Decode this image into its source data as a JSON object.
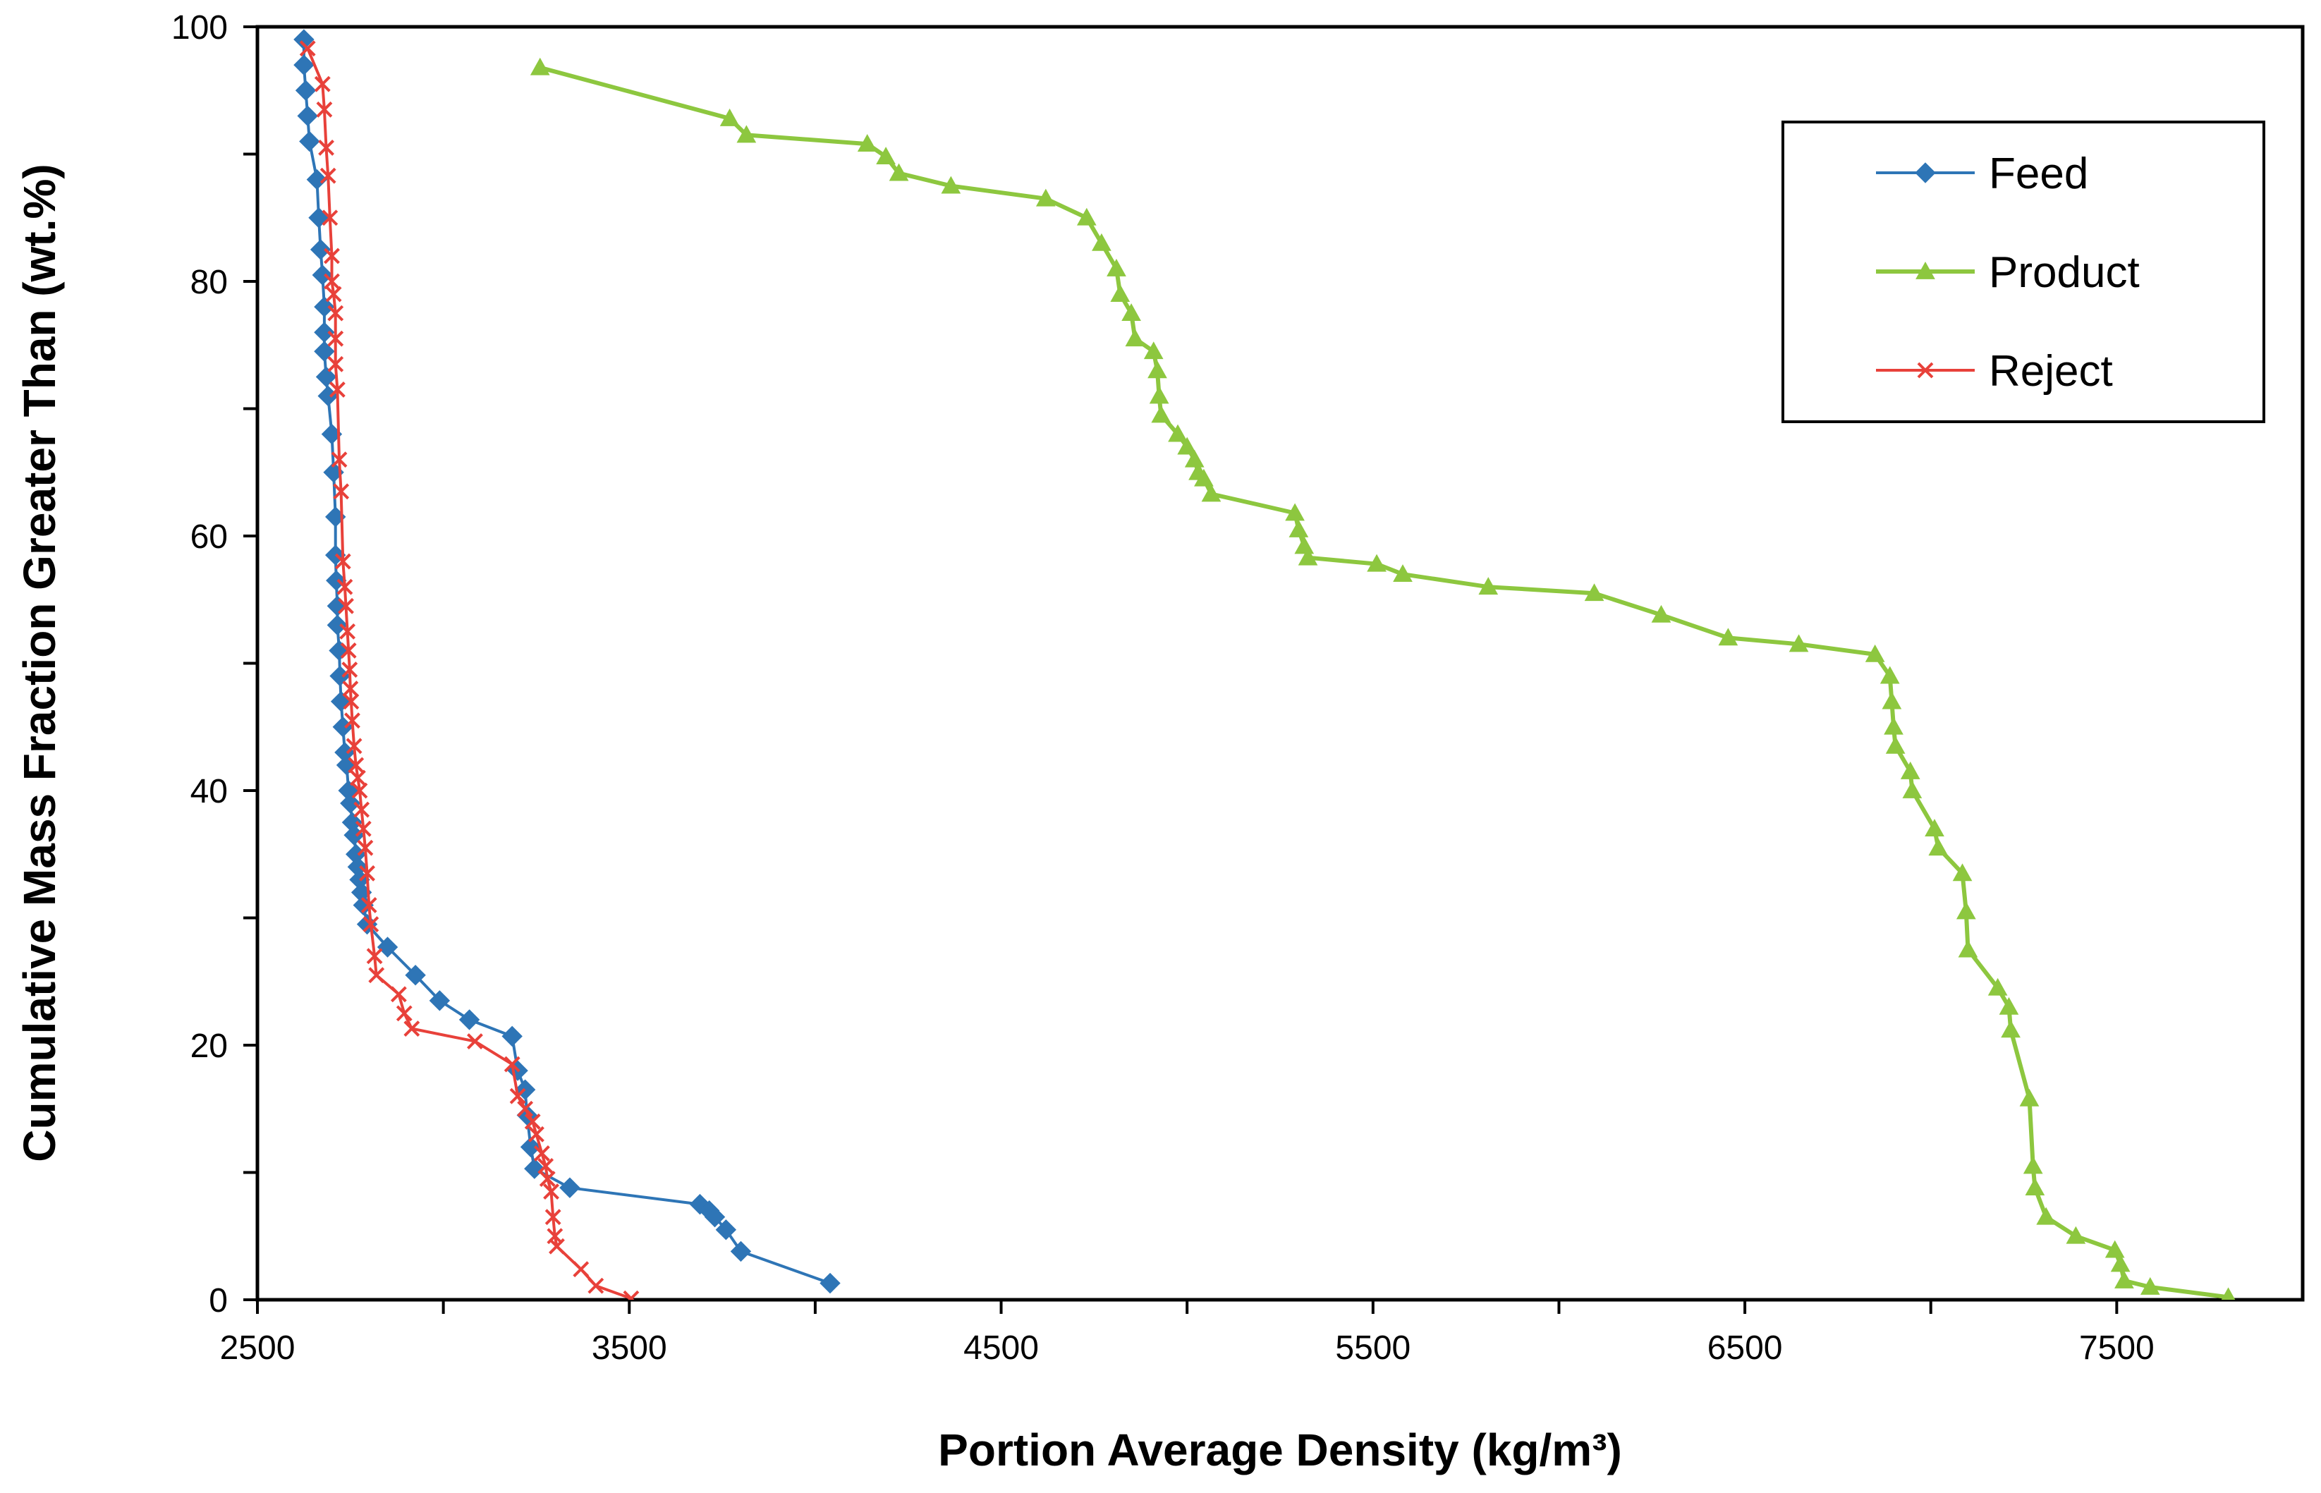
{
  "chart_data": {
    "type": "line",
    "title": "",
    "xlabel": "Portion Average Density (kg/m³)",
    "ylabel": "Cumulative Mass Fraction Greater Than (wt.%)",
    "xlim": [
      2500,
      8000
    ],
    "ylim": [
      0,
      100
    ],
    "xticks": [
      "2500",
      "3500",
      "4500",
      "5500",
      "6500",
      "7500"
    ],
    "yticks": [
      "0",
      "20",
      "40",
      "60",
      "80",
      "100"
    ],
    "grid": false,
    "legend": "top-right",
    "series": [
      {
        "name": "Feed",
        "color": "#2E75B6",
        "marker": "diamond",
        "points": [
          [
            2625,
            99
          ],
          [
            2625,
            97
          ],
          [
            2630,
            95
          ],
          [
            2635,
            93
          ],
          [
            2640,
            91
          ],
          [
            2660,
            88
          ],
          [
            2665,
            85
          ],
          [
            2670,
            82.5
          ],
          [
            2675,
            80.5
          ],
          [
            2680,
            78
          ],
          [
            2680,
            76
          ],
          [
            2680,
            74.5
          ],
          [
            2685,
            72.5
          ],
          [
            2690,
            71
          ],
          [
            2700,
            68
          ],
          [
            2705,
            65
          ],
          [
            2710,
            61.5
          ],
          [
            2710,
            58.5
          ],
          [
            2712,
            56.5
          ],
          [
            2715,
            54.5
          ],
          [
            2715,
            53
          ],
          [
            2720,
            51
          ],
          [
            2722,
            49
          ],
          [
            2725,
            47
          ],
          [
            2730,
            45
          ],
          [
            2735,
            43
          ],
          [
            2740,
            42
          ],
          [
            2745,
            40
          ],
          [
            2750,
            39
          ],
          [
            2755,
            37.5
          ],
          [
            2760,
            36.5
          ],
          [
            2765,
            35
          ],
          [
            2770,
            34
          ],
          [
            2775,
            33
          ],
          [
            2780,
            32
          ],
          [
            2785,
            31
          ],
          [
            2795,
            29.5
          ],
          [
            2850,
            27.7
          ],
          [
            2925,
            25.5
          ],
          [
            2990,
            23.5
          ],
          [
            3070,
            22
          ],
          [
            3185,
            20.7
          ],
          [
            3200,
            18
          ],
          [
            3220,
            16.5
          ],
          [
            3225,
            14.5
          ],
          [
            3235,
            12
          ],
          [
            3245,
            10.3
          ],
          [
            3340,
            8.8
          ],
          [
            3690,
            7.5
          ],
          [
            3715,
            7
          ],
          [
            3730,
            6.5
          ],
          [
            3760,
            5.5
          ],
          [
            3800,
            3.8
          ],
          [
            4040,
            1.3
          ]
        ]
      },
      {
        "name": "Product",
        "color": "#8DC73F",
        "marker": "triangle",
        "points": [
          [
            3260,
            96.8
          ],
          [
            3770,
            92.8
          ],
          [
            3815,
            91.5
          ],
          [
            4140,
            90.8
          ],
          [
            4190,
            89.8
          ],
          [
            4225,
            88.5
          ],
          [
            4365,
            87.5
          ],
          [
            4620,
            86.5
          ],
          [
            4730,
            85
          ],
          [
            4770,
            83
          ],
          [
            4810,
            81
          ],
          [
            4820,
            79
          ],
          [
            4850,
            77.5
          ],
          [
            4860,
            75.5
          ],
          [
            4910,
            74.5
          ],
          [
            4920,
            73
          ],
          [
            4925,
            71
          ],
          [
            4930,
            69.5
          ],
          [
            4975,
            68
          ],
          [
            5000,
            67
          ],
          [
            5020,
            66
          ],
          [
            5030,
            65
          ],
          [
            5045,
            64.5
          ],
          [
            5065,
            63.3
          ],
          [
            5290,
            61.8
          ],
          [
            5300,
            60.5
          ],
          [
            5315,
            59.2
          ],
          [
            5325,
            58.3
          ],
          [
            5510,
            57.8
          ],
          [
            5580,
            57
          ],
          [
            5810,
            56
          ],
          [
            6095,
            55.5
          ],
          [
            6275,
            53.8
          ],
          [
            6455,
            52
          ],
          [
            6645,
            51.5
          ],
          [
            6850,
            50.7
          ],
          [
            6890,
            49
          ],
          [
            6895,
            47
          ],
          [
            6900,
            45
          ],
          [
            6905,
            43.5
          ],
          [
            6945,
            41.5
          ],
          [
            6950,
            40
          ],
          [
            7010,
            37
          ],
          [
            7020,
            35.5
          ],
          [
            7085,
            33.5
          ],
          [
            7095,
            30.5
          ],
          [
            7100,
            27.5
          ],
          [
            7180,
            24.5
          ],
          [
            7210,
            23
          ],
          [
            7215,
            21.2
          ],
          [
            7265,
            15.8
          ],
          [
            7275,
            10.5
          ],
          [
            7280,
            8.8
          ],
          [
            7310,
            6.5
          ],
          [
            7390,
            5
          ],
          [
            7495,
            3.9
          ],
          [
            7510,
            2.8
          ],
          [
            7520,
            1.5
          ],
          [
            7590,
            1
          ],
          [
            7800,
            0.2
          ]
        ]
      },
      {
        "name": "Reject",
        "color": "#E8413A",
        "marker": "x",
        "points": [
          [
            2635,
            98.3
          ],
          [
            2675,
            95.5
          ],
          [
            2680,
            93.5
          ],
          [
            2685,
            90.5
          ],
          [
            2690,
            88.3
          ],
          [
            2695,
            85
          ],
          [
            2700,
            82
          ],
          [
            2700,
            80
          ],
          [
            2705,
            79
          ],
          [
            2710,
            77.5
          ],
          [
            2710,
            75.5
          ],
          [
            2710,
            73.5
          ],
          [
            2715,
            71.5
          ],
          [
            2720,
            66
          ],
          [
            2725,
            63.5
          ],
          [
            2730,
            58
          ],
          [
            2735,
            56
          ],
          [
            2738,
            54.5
          ],
          [
            2742,
            52.5
          ],
          [
            2745,
            51
          ],
          [
            2748,
            49.5
          ],
          [
            2750,
            48
          ],
          [
            2752,
            47
          ],
          [
            2755,
            45.5
          ],
          [
            2760,
            43.5
          ],
          [
            2765,
            42
          ],
          [
            2770,
            41
          ],
          [
            2775,
            40
          ],
          [
            2780,
            38.5
          ],
          [
            2785,
            37
          ],
          [
            2790,
            35.5
          ],
          [
            2795,
            33.5
          ],
          [
            2800,
            31
          ],
          [
            2805,
            29.5
          ],
          [
            2815,
            27
          ],
          [
            2820,
            25.5
          ],
          [
            2880,
            24
          ],
          [
            2895,
            22.5
          ],
          [
            2915,
            21.3
          ],
          [
            3085,
            20.3
          ],
          [
            3185,
            18.5
          ],
          [
            3200,
            16
          ],
          [
            3220,
            15
          ],
          [
            3240,
            14
          ],
          [
            3250,
            13
          ],
          [
            3265,
            11.5
          ],
          [
            3275,
            10.5
          ],
          [
            3280,
            9.5
          ],
          [
            3290,
            8.5
          ],
          [
            3295,
            6.5
          ],
          [
            3300,
            5
          ],
          [
            3305,
            4.2
          ],
          [
            3370,
            2.4
          ],
          [
            3410,
            1.1
          ],
          [
            3505,
            0.1
          ]
        ]
      }
    ]
  }
}
